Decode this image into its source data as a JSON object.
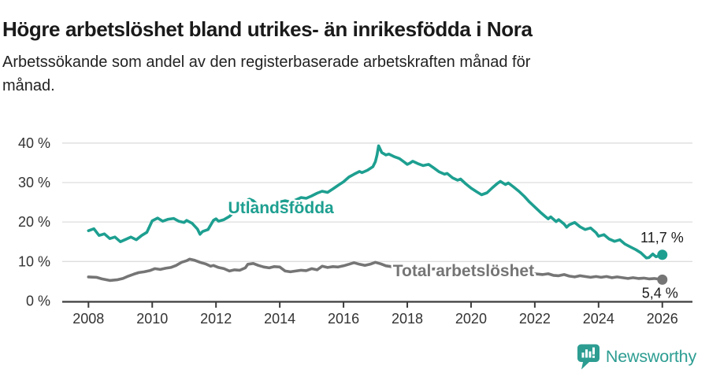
{
  "header": {
    "title": "Högre arbetslöshet bland utrikes- än inrikesfödda i Nora",
    "subtitle_line1": "Arbetssökande som andel av den registerbaserade arbetskraften månad för",
    "subtitle_line2": "månad."
  },
  "colors": {
    "foreign_born": "#1d9f90",
    "total": "#757575",
    "grid": "#dedede",
    "axis": "#3d3d3d",
    "tick_text": "#333333",
    "annotation_text": "#1a1a1a",
    "logo": "#2d9d92",
    "background": "#ffffff"
  },
  "chart_data": {
    "type": "line",
    "unit": "%",
    "x_axis": {
      "range": [
        2007.8,
        2026.6
      ],
      "ticks": [
        {
          "v": 2008,
          "label": "2008"
        },
        {
          "v": 2010,
          "label": "2010"
        },
        {
          "v": 2012,
          "label": "2012"
        },
        {
          "v": 2014,
          "label": "2014"
        },
        {
          "v": 2016,
          "label": "2016"
        },
        {
          "v": 2018,
          "label": "2018"
        },
        {
          "v": 2020,
          "label": "2020"
        },
        {
          "v": 2022,
          "label": "2022"
        },
        {
          "v": 2024,
          "label": "2024"
        },
        {
          "v": 2026,
          "label": "2026"
        }
      ]
    },
    "y_axis": {
      "range": [
        0,
        40
      ],
      "grid": true,
      "ticks": [
        {
          "v": 0,
          "label": "0 %"
        },
        {
          "v": 10,
          "label": "10 %"
        },
        {
          "v": 20,
          "label": "20 %"
        },
        {
          "v": 30,
          "label": "30 %"
        },
        {
          "v": 40,
          "label": "40 %"
        }
      ]
    },
    "legend_position": "inline-labels",
    "series": [
      {
        "name": "Utlandsfödda",
        "color_key": "foreign_born",
        "end_label": "11,7 %",
        "end_value": 11.7,
        "label_pos": [
          2012.38,
          22.2
        ],
        "points": [
          [
            2008.0,
            17.8
          ],
          [
            2008.17,
            18.3
          ],
          [
            2008.33,
            16.6
          ],
          [
            2008.5,
            17.0
          ],
          [
            2008.67,
            15.8
          ],
          [
            2008.83,
            16.2
          ],
          [
            2009.0,
            15.0
          ],
          [
            2009.17,
            15.6
          ],
          [
            2009.33,
            16.2
          ],
          [
            2009.5,
            15.5
          ],
          [
            2009.67,
            16.6
          ],
          [
            2009.83,
            17.4
          ],
          [
            2010.0,
            20.3
          ],
          [
            2010.17,
            21.0
          ],
          [
            2010.33,
            20.2
          ],
          [
            2010.5,
            20.7
          ],
          [
            2010.67,
            20.9
          ],
          [
            2010.83,
            20.2
          ],
          [
            2011.0,
            19.9
          ],
          [
            2011.08,
            20.4
          ],
          [
            2011.25,
            19.7
          ],
          [
            2011.42,
            18.2
          ],
          [
            2011.5,
            16.9
          ],
          [
            2011.58,
            17.6
          ],
          [
            2011.75,
            18.1
          ],
          [
            2011.92,
            20.4
          ],
          [
            2012.0,
            20.8
          ],
          [
            2012.08,
            20.2
          ],
          [
            2012.25,
            20.6
          ],
          [
            2012.42,
            21.4
          ],
          [
            2012.58,
            22.6
          ],
          [
            2012.75,
            24.0
          ],
          [
            2012.92,
            25.2
          ],
          [
            2013.05,
            25.8
          ],
          [
            2013.17,
            25.4
          ],
          [
            2013.33,
            24.1
          ],
          [
            2013.5,
            24.5
          ],
          [
            2013.67,
            24.2
          ],
          [
            2013.83,
            24.7
          ],
          [
            2014.0,
            25.1
          ],
          [
            2014.17,
            25.4
          ],
          [
            2014.33,
            25.1
          ],
          [
            2014.5,
            25.6
          ],
          [
            2014.67,
            26.2
          ],
          [
            2014.83,
            26.0
          ],
          [
            2015.0,
            26.6
          ],
          [
            2015.17,
            27.3
          ],
          [
            2015.33,
            27.8
          ],
          [
            2015.5,
            27.5
          ],
          [
            2015.67,
            28.4
          ],
          [
            2015.83,
            29.3
          ],
          [
            2016.0,
            30.2
          ],
          [
            2016.17,
            31.4
          ],
          [
            2016.33,
            32.1
          ],
          [
            2016.5,
            32.8
          ],
          [
            2016.58,
            32.5
          ],
          [
            2016.75,
            33.1
          ],
          [
            2016.92,
            34.0
          ],
          [
            2017.0,
            35.3
          ],
          [
            2017.05,
            37.0
          ],
          [
            2017.1,
            39.3
          ],
          [
            2017.2,
            37.6
          ],
          [
            2017.33,
            37.0
          ],
          [
            2017.42,
            37.2
          ],
          [
            2017.58,
            36.6
          ],
          [
            2017.75,
            36.1
          ],
          [
            2017.92,
            35.1
          ],
          [
            2018.0,
            34.6
          ],
          [
            2018.08,
            34.9
          ],
          [
            2018.17,
            35.4
          ],
          [
            2018.33,
            34.8
          ],
          [
            2018.5,
            34.3
          ],
          [
            2018.67,
            34.6
          ],
          [
            2018.83,
            33.7
          ],
          [
            2019.0,
            32.7
          ],
          [
            2019.17,
            32.1
          ],
          [
            2019.25,
            32.3
          ],
          [
            2019.42,
            31.2
          ],
          [
            2019.58,
            30.6
          ],
          [
            2019.67,
            30.9
          ],
          [
            2019.83,
            29.7
          ],
          [
            2020.0,
            28.6
          ],
          [
            2020.17,
            27.7
          ],
          [
            2020.33,
            26.9
          ],
          [
            2020.5,
            27.4
          ],
          [
            2020.67,
            28.7
          ],
          [
            2020.83,
            29.8
          ],
          [
            2020.92,
            30.3
          ],
          [
            2021.08,
            29.5
          ],
          [
            2021.17,
            29.9
          ],
          [
            2021.33,
            28.9
          ],
          [
            2021.5,
            27.8
          ],
          [
            2021.67,
            26.5
          ],
          [
            2021.83,
            25.1
          ],
          [
            2022.0,
            23.8
          ],
          [
            2022.17,
            22.5
          ],
          [
            2022.33,
            21.4
          ],
          [
            2022.42,
            20.8
          ],
          [
            2022.5,
            21.3
          ],
          [
            2022.67,
            20.1
          ],
          [
            2022.75,
            20.6
          ],
          [
            2022.92,
            19.5
          ],
          [
            2023.0,
            18.7
          ],
          [
            2023.08,
            19.3
          ],
          [
            2023.25,
            19.9
          ],
          [
            2023.42,
            18.8
          ],
          [
            2023.58,
            18.1
          ],
          [
            2023.75,
            18.5
          ],
          [
            2023.92,
            17.3
          ],
          [
            2024.0,
            16.4
          ],
          [
            2024.17,
            16.8
          ],
          [
            2024.33,
            15.7
          ],
          [
            2024.5,
            15.1
          ],
          [
            2024.67,
            15.5
          ],
          [
            2024.83,
            14.4
          ],
          [
            2025.0,
            13.7
          ],
          [
            2025.17,
            13.0
          ],
          [
            2025.33,
            12.2
          ],
          [
            2025.5,
            10.9
          ],
          [
            2025.58,
            11.0
          ],
          [
            2025.7,
            11.9
          ],
          [
            2025.8,
            11.2
          ],
          [
            2025.9,
            11.5
          ],
          [
            2026.0,
            11.7
          ]
        ]
      },
      {
        "name": "Total arbetslöshet",
        "color_key": "total",
        "end_label": "5,4 %",
        "end_value": 5.4,
        "label_pos": [
          2017.55,
          6.3
        ],
        "points": [
          [
            2008.0,
            6.1
          ],
          [
            2008.25,
            6.0
          ],
          [
            2008.42,
            5.6
          ],
          [
            2008.67,
            5.2
          ],
          [
            2008.92,
            5.4
          ],
          [
            2009.08,
            5.7
          ],
          [
            2009.25,
            6.3
          ],
          [
            2009.42,
            6.8
          ],
          [
            2009.58,
            7.2
          ],
          [
            2009.75,
            7.4
          ],
          [
            2009.92,
            7.7
          ],
          [
            2010.08,
            8.2
          ],
          [
            2010.25,
            8.0
          ],
          [
            2010.42,
            8.3
          ],
          [
            2010.58,
            8.5
          ],
          [
            2010.75,
            9.0
          ],
          [
            2010.92,
            9.8
          ],
          [
            2011.08,
            10.2
          ],
          [
            2011.17,
            10.6
          ],
          [
            2011.33,
            10.3
          ],
          [
            2011.5,
            9.8
          ],
          [
            2011.67,
            9.4
          ],
          [
            2011.83,
            8.8
          ],
          [
            2011.92,
            9.0
          ],
          [
            2012.08,
            8.5
          ],
          [
            2012.25,
            8.2
          ],
          [
            2012.42,
            7.6
          ],
          [
            2012.58,
            7.9
          ],
          [
            2012.75,
            7.8
          ],
          [
            2012.92,
            8.4
          ],
          [
            2013.0,
            9.3
          ],
          [
            2013.17,
            9.5
          ],
          [
            2013.33,
            9.0
          ],
          [
            2013.5,
            8.6
          ],
          [
            2013.67,
            8.4
          ],
          [
            2013.83,
            8.7
          ],
          [
            2014.0,
            8.6
          ],
          [
            2014.17,
            7.6
          ],
          [
            2014.33,
            7.4
          ],
          [
            2014.5,
            7.6
          ],
          [
            2014.67,
            7.8
          ],
          [
            2014.83,
            7.7
          ],
          [
            2015.0,
            8.2
          ],
          [
            2015.17,
            7.9
          ],
          [
            2015.33,
            8.8
          ],
          [
            2015.5,
            8.5
          ],
          [
            2015.67,
            8.7
          ],
          [
            2015.83,
            8.6
          ],
          [
            2016.0,
            8.9
          ],
          [
            2016.17,
            9.3
          ],
          [
            2016.33,
            9.7
          ],
          [
            2016.5,
            9.3
          ],
          [
            2016.67,
            9.0
          ],
          [
            2016.83,
            9.3
          ],
          [
            2017.0,
            9.8
          ],
          [
            2017.17,
            9.4
          ],
          [
            2017.33,
            8.9
          ],
          [
            2017.5,
            8.7
          ],
          [
            2017.67,
            8.9
          ],
          [
            2017.83,
            8.5
          ],
          [
            2018.0,
            8.6
          ],
          [
            2018.25,
            8.3
          ],
          [
            2018.5,
            8.4
          ],
          [
            2018.75,
            8.1
          ],
          [
            2019.0,
            8.2
          ],
          [
            2019.25,
            7.9
          ],
          [
            2019.5,
            7.7
          ],
          [
            2019.75,
            7.8
          ],
          [
            2020.0,
            7.6
          ],
          [
            2020.25,
            7.8
          ],
          [
            2020.5,
            7.5
          ],
          [
            2020.75,
            7.4
          ],
          [
            2021.0,
            7.5
          ],
          [
            2021.25,
            7.2
          ],
          [
            2021.5,
            7.0
          ],
          [
            2021.75,
            7.1
          ],
          [
            2022.0,
            6.9
          ],
          [
            2022.25,
            6.7
          ],
          [
            2022.42,
            6.9
          ],
          [
            2022.58,
            6.5
          ],
          [
            2022.75,
            6.4
          ],
          [
            2022.92,
            6.7
          ],
          [
            2023.08,
            6.3
          ],
          [
            2023.25,
            6.1
          ],
          [
            2023.42,
            6.4
          ],
          [
            2023.58,
            6.2
          ],
          [
            2023.75,
            6.0
          ],
          [
            2023.92,
            6.2
          ],
          [
            2024.08,
            6.0
          ],
          [
            2024.25,
            6.2
          ],
          [
            2024.42,
            5.9
          ],
          [
            2024.58,
            6.1
          ],
          [
            2024.75,
            5.9
          ],
          [
            2024.92,
            5.7
          ],
          [
            2025.08,
            5.9
          ],
          [
            2025.25,
            5.7
          ],
          [
            2025.42,
            5.8
          ],
          [
            2025.58,
            5.6
          ],
          [
            2025.75,
            5.7
          ],
          [
            2025.92,
            5.5
          ],
          [
            2026.0,
            5.4
          ]
        ]
      }
    ]
  },
  "footer": {
    "brand": "Newsworthy"
  }
}
